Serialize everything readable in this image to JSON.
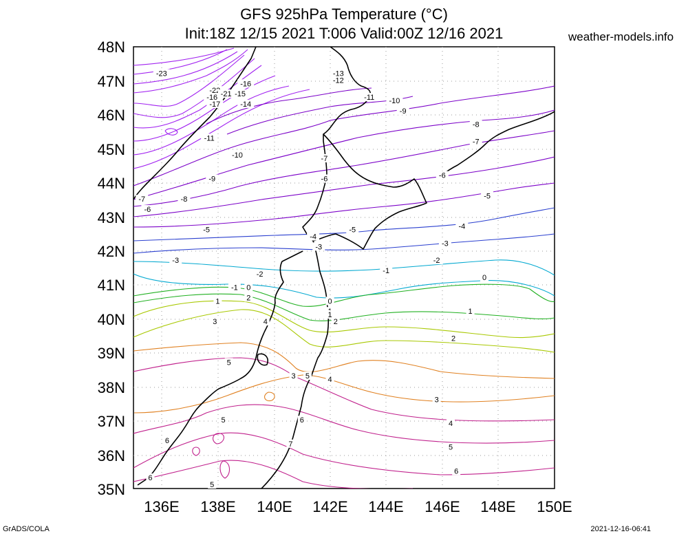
{
  "header": {
    "title_line1": "GFS 925hPa Temperature (°C)",
    "title_line2": "Init:18Z 12/15 2021 T:006 Valid:00Z 12/16 2021",
    "site": "weather-models.info"
  },
  "footer": {
    "left": "GrADS/COLA",
    "right": "2021-12-16-06:41"
  },
  "map": {
    "lat_labels": [
      "48N",
      "47N",
      "46N",
      "45N",
      "44N",
      "43N",
      "42N",
      "41N",
      "40N",
      "39N",
      "38N",
      "37N",
      "36N",
      "35N"
    ],
    "lon_labels": [
      "136E",
      "138E",
      "140E",
      "142E",
      "144E",
      "146E",
      "148E",
      "150E"
    ],
    "colors": {
      "cold_purple": "#8b00cf",
      "violet": "#a020f0",
      "blue": "#1f3fcf",
      "cyan": "#00a0c8",
      "green": "#20b020",
      "yellow_green": "#a0c800",
      "orange": "#e08020",
      "warm_magenta": "#c0208c",
      "coast": "#000000"
    },
    "contour_labels": [
      {
        "text": "-23",
        "lon": 136.0,
        "lat": 47.2
      },
      {
        "text": "-22",
        "lon": 137.9,
        "lat": 46.7
      },
      {
        "text": "-21",
        "lon": 138.3,
        "lat": 46.6
      },
      {
        "text": "-16",
        "lon": 137.8,
        "lat": 46.5
      },
      {
        "text": "-17",
        "lon": 137.9,
        "lat": 46.3
      },
      {
        "text": "-16",
        "lon": 139.0,
        "lat": 46.9
      },
      {
        "text": "-15",
        "lon": 138.8,
        "lat": 46.6
      },
      {
        "text": "-14",
        "lon": 139.0,
        "lat": 46.3
      },
      {
        "text": "-13",
        "lon": 142.3,
        "lat": 47.2
      },
      {
        "text": "-12",
        "lon": 142.3,
        "lat": 47.0
      },
      {
        "text": "-11",
        "lon": 143.4,
        "lat": 46.5
      },
      {
        "text": "-10",
        "lon": 144.3,
        "lat": 46.4
      },
      {
        "text": "-9",
        "lon": 144.6,
        "lat": 46.1
      },
      {
        "text": "-8",
        "lon": 147.2,
        "lat": 45.7
      },
      {
        "text": "-7",
        "lon": 147.2,
        "lat": 45.2
      },
      {
        "text": "-11",
        "lon": 137.7,
        "lat": 45.3
      },
      {
        "text": "-10",
        "lon": 138.7,
        "lat": 44.8
      },
      {
        "text": "-9",
        "lon": 137.8,
        "lat": 44.1
      },
      {
        "text": "-8",
        "lon": 136.8,
        "lat": 43.5
      },
      {
        "text": "-7",
        "lon": 135.3,
        "lat": 43.5
      },
      {
        "text": "-6",
        "lon": 135.5,
        "lat": 43.2
      },
      {
        "text": "-7",
        "lon": 141.8,
        "lat": 44.7
      },
      {
        "text": "-6",
        "lon": 141.8,
        "lat": 44.1
      },
      {
        "text": "-6",
        "lon": 146.0,
        "lat": 44.2
      },
      {
        "text": "-5",
        "lon": 147.6,
        "lat": 43.6
      },
      {
        "text": "-5",
        "lon": 137.6,
        "lat": 42.6
      },
      {
        "text": "-5",
        "lon": 142.8,
        "lat": 42.6
      },
      {
        "text": "-4",
        "lon": 141.4,
        "lat": 42.4
      },
      {
        "text": "-4",
        "lon": 146.7,
        "lat": 42.7
      },
      {
        "text": "-3",
        "lon": 141.6,
        "lat": 42.1
      },
      {
        "text": "-3",
        "lon": 146.1,
        "lat": 42.2
      },
      {
        "text": "-3",
        "lon": 136.5,
        "lat": 41.7
      },
      {
        "text": "-2",
        "lon": 139.5,
        "lat": 41.3
      },
      {
        "text": "-2",
        "lon": 145.8,
        "lat": 41.7
      },
      {
        "text": "-1",
        "lon": 144.0,
        "lat": 41.4
      },
      {
        "text": "-1",
        "lon": 138.6,
        "lat": 40.9
      },
      {
        "text": "0",
        "lon": 139.1,
        "lat": 40.9
      },
      {
        "text": "0",
        "lon": 147.5,
        "lat": 41.2
      },
      {
        "text": "0",
        "lon": 142.0,
        "lat": 40.5
      },
      {
        "text": "1",
        "lon": 138.0,
        "lat": 40.5
      },
      {
        "text": "2",
        "lon": 139.1,
        "lat": 40.6
      },
      {
        "text": "1",
        "lon": 142.0,
        "lat": 40.2
      },
      {
        "text": "1",
        "lon": 147.0,
        "lat": 40.2
      },
      {
        "text": "1",
        "lon": 142.0,
        "lat": 40.1
      },
      {
        "text": "2",
        "lon": 142.2,
        "lat": 39.9
      },
      {
        "text": "3",
        "lon": 137.9,
        "lat": 39.9
      },
      {
        "text": "4",
        "lon": 139.7,
        "lat": 39.9
      },
      {
        "text": "2",
        "lon": 146.4,
        "lat": 39.4
      },
      {
        "text": "5",
        "lon": 138.4,
        "lat": 38.7
      },
      {
        "text": "3",
        "lon": 140.7,
        "lat": 38.3
      },
      {
        "text": "5",
        "lon": 141.2,
        "lat": 38.3
      },
      {
        "text": "4",
        "lon": 142.0,
        "lat": 38.2
      },
      {
        "text": "3",
        "lon": 145.8,
        "lat": 37.6
      },
      {
        "text": "4",
        "lon": 146.3,
        "lat": 36.9
      },
      {
        "text": "5",
        "lon": 138.2,
        "lat": 37.0
      },
      {
        "text": "6",
        "lon": 141.0,
        "lat": 37.0
      },
      {
        "text": "6",
        "lon": 136.2,
        "lat": 36.4
      },
      {
        "text": "5",
        "lon": 146.3,
        "lat": 36.2
      },
      {
        "text": "6",
        "lon": 146.5,
        "lat": 35.5
      },
      {
        "text": "7",
        "lon": 140.6,
        "lat": 36.3
      },
      {
        "text": "6",
        "lon": 135.6,
        "lat": 35.3
      },
      {
        "text": "5",
        "lon": 137.8,
        "lat": 35.1
      }
    ]
  }
}
